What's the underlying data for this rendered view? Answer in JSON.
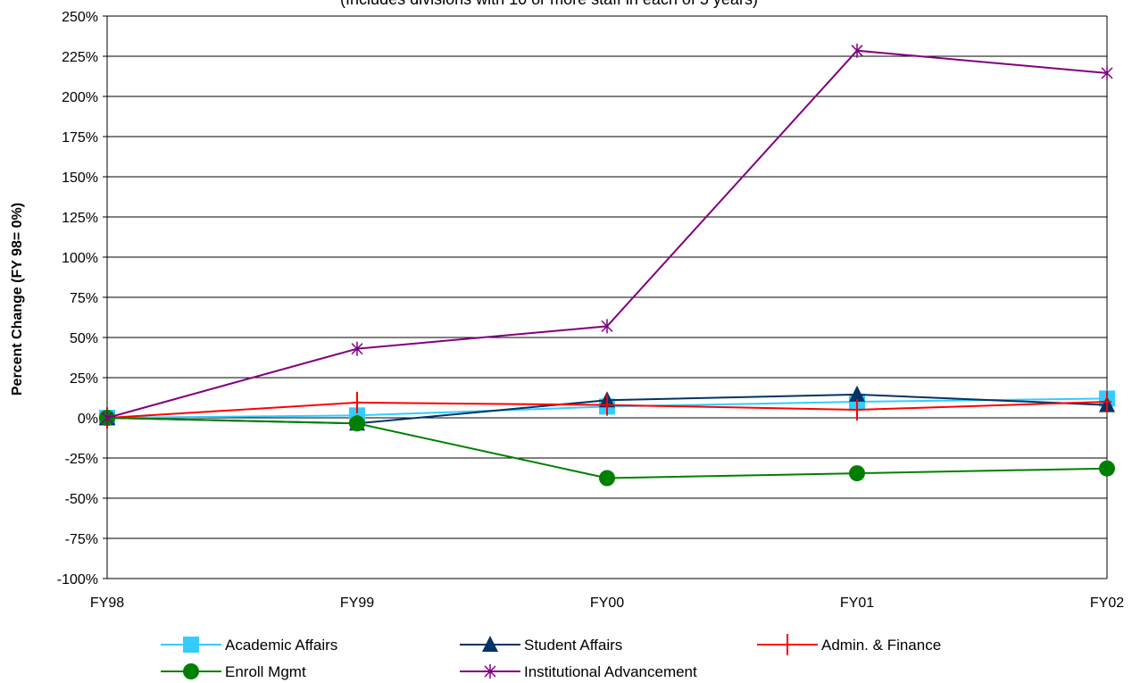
{
  "chart_data": {
    "type": "line",
    "subtitle": "(Includes divisions with 10 or more staff in each of 5 years)",
    "ylabel": "Percent Change (FY 98= 0%)",
    "xlabel": "",
    "categories": [
      "FY98",
      "FY99",
      "FY00",
      "FY01",
      "FY02"
    ],
    "ylim": [
      -100,
      250
    ],
    "ytick_step": 25,
    "y_unit": "%",
    "grid": "horizontal",
    "legend_position": "bottom",
    "series": [
      {
        "name": "Academic Affairs",
        "color": "#33CCFF",
        "marker": "square",
        "values": [
          0,
          1.5,
          7,
          10,
          12
        ]
      },
      {
        "name": "Student Affairs",
        "color": "#003366",
        "marker": "triangle",
        "values": [
          0,
          -3.5,
          11,
          14.5,
          8
        ]
      },
      {
        "name": "Admin. & Finance",
        "color": "#FF0000",
        "marker": "plus",
        "values": [
          0,
          9.5,
          8,
          5,
          10
        ]
      },
      {
        "name": "Enroll Mgmt",
        "color": "#008000",
        "marker": "circle",
        "values": [
          0,
          -3.5,
          -37.5,
          -34.5,
          -31.5
        ]
      },
      {
        "name": "Institutional Advancement",
        "color": "#800080",
        "marker": "star",
        "values": [
          0,
          43,
          57,
          228.5,
          214.5
        ]
      }
    ]
  }
}
